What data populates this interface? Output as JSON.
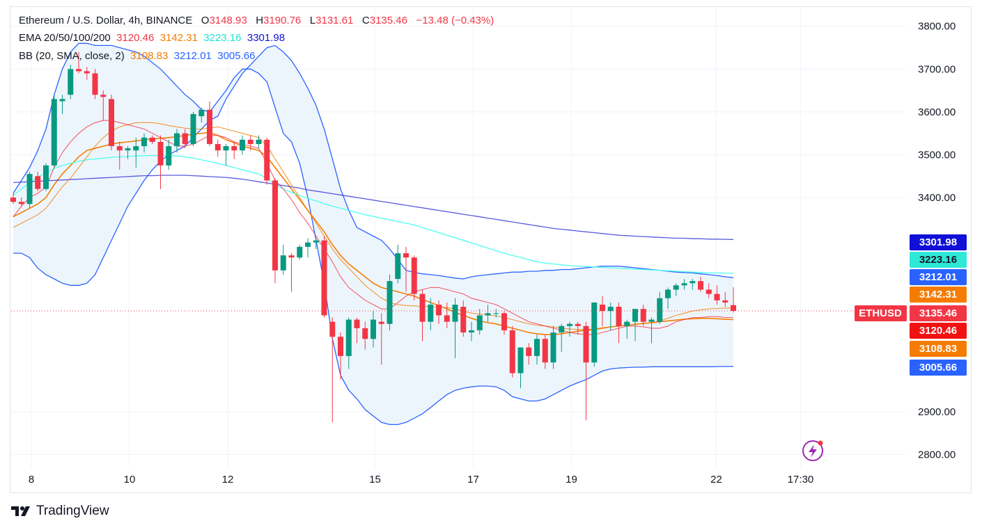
{
  "header": {
    "symbol": "Ethereum / U.S. Dollar, 4h, BINANCE",
    "open_key": "O",
    "open": "3148.93",
    "high_key": "H",
    "high": "3190.76",
    "low_key": "L",
    "low": "3131.61",
    "close_key": "C",
    "close": "3135.46",
    "change": "−13.48 (−0.43%)",
    "ema_label": "EMA 20/50/100/200",
    "ema_values": [
      "3120.46",
      "3142.31",
      "3223.16",
      "3301.98"
    ],
    "bb_label": "BB (20, SMA, close, 2)",
    "bb_values": [
      "3108.83",
      "3212.01",
      "3005.66"
    ]
  },
  "brand": {
    "name": "TradingView"
  },
  "colors": {
    "up": "#089981",
    "down": "#f23645",
    "ema20": "#f23645",
    "ema50": "#f57c00",
    "ema100": "#4dfff0",
    "ema200": "#2f2fd6",
    "bb_basis": "#f57c00",
    "bb_band": "#2962ff",
    "bb_fill": "#e9f2fb",
    "ethusd_tag": "#f23645"
  },
  "chart_data": {
    "type": "candlestick",
    "title": "Ethereum / U.S. Dollar, 4h, BINANCE",
    "ylim": [
      2770,
      3845
    ],
    "y_ticks": [
      "3800.00",
      "3700.00",
      "3600.00",
      "3500.00",
      "3400.00",
      "2900.00",
      "2800.00"
    ],
    "x_ticks": [
      "8",
      "10",
      "12",
      "15",
      "17",
      "19",
      "22",
      "17:30"
    ],
    "x_tick_positions": [
      0.0,
      12.0,
      24.0,
      42.0,
      54.0,
      66.0,
      83.7,
      94.0
    ],
    "grid": true,
    "candles": [
      [
        3400,
        3410,
        3385,
        3390
      ],
      [
        3390,
        3400,
        3380,
        3385
      ],
      [
        3385,
        3460,
        3375,
        3455
      ],
      [
        3450,
        3460,
        3415,
        3420
      ],
      [
        3420,
        3480,
        3415,
        3475
      ],
      [
        3475,
        3640,
        3470,
        3630
      ],
      [
        3625,
        3640,
        3595,
        3630
      ],
      [
        3640,
        3710,
        3630,
        3700
      ],
      [
        3700,
        3740,
        3690,
        3695
      ],
      [
        3695,
        3705,
        3675,
        3690
      ],
      [
        3690,
        3700,
        3630,
        3640
      ],
      [
        3640,
        3650,
        3580,
        3635
      ],
      [
        3630,
        3640,
        3510,
        3520
      ],
      [
        3520,
        3530,
        3465,
        3510
      ],
      [
        3510,
        3520,
        3490,
        3515
      ],
      [
        3510,
        3540,
        3470,
        3520
      ],
      [
        3520,
        3550,
        3505,
        3540
      ],
      [
        3540,
        3545,
        3525,
        3530
      ],
      [
        3530,
        3545,
        3420,
        3475
      ],
      [
        3475,
        3535,
        3465,
        3520
      ],
      [
        3520,
        3560,
        3505,
        3550
      ],
      [
        3550,
        3560,
        3515,
        3525
      ],
      [
        3525,
        3600,
        3520,
        3595
      ],
      [
        3590,
        3610,
        3575,
        3605
      ],
      [
        3605,
        3625,
        3520,
        3525
      ],
      [
        3525,
        3535,
        3495,
        3510
      ],
      [
        3510,
        3525,
        3475,
        3520
      ],
      [
        3520,
        3530,
        3490,
        3510
      ],
      [
        3510,
        3545,
        3500,
        3535
      ],
      [
        3535,
        3545,
        3510,
        3525
      ],
      [
        3525,
        3545,
        3515,
        3535
      ],
      [
        3535,
        3540,
        3430,
        3440
      ],
      [
        3440,
        3445,
        3200,
        3230
      ],
      [
        3230,
        3290,
        3220,
        3265
      ],
      [
        3265,
        3270,
        3180,
        3260
      ],
      [
        3260,
        3290,
        3255,
        3285
      ],
      [
        3285,
        3305,
        3260,
        3295
      ],
      [
        3295,
        3305,
        3280,
        3300
      ],
      [
        3300,
        3310,
        3120,
        3125
      ],
      [
        3110,
        3120,
        2875,
        3075
      ],
      [
        3075,
        3085,
        2975,
        3030
      ],
      [
        3030,
        3120,
        3000,
        3115
      ],
      [
        3115,
        3120,
        3060,
        3095
      ],
      [
        3095,
        3110,
        3045,
        3070
      ],
      [
        3070,
        3135,
        3050,
        3115
      ],
      [
        3110,
        3130,
        3010,
        3105
      ],
      [
        3105,
        3220,
        3090,
        3205
      ],
      [
        3210,
        3290,
        3200,
        3270
      ],
      [
        3270,
        3285,
        3180,
        3260
      ],
      [
        3260,
        3265,
        3160,
        3175
      ],
      [
        3175,
        3185,
        3065,
        3110
      ],
      [
        3110,
        3165,
        3090,
        3150
      ],
      [
        3150,
        3160,
        3105,
        3125
      ],
      [
        3125,
        3155,
        3095,
        3110
      ],
      [
        3110,
        3165,
        3025,
        3150
      ],
      [
        3145,
        3160,
        3075,
        3085
      ],
      [
        3085,
        3110,
        3065,
        3090
      ],
      [
        3090,
        3140,
        3080,
        3125
      ],
      [
        3125,
        3150,
        3110,
        3130
      ],
      [
        3130,
        3140,
        3120,
        3130
      ],
      [
        3130,
        3135,
        3080,
        3090
      ],
      [
        3090,
        3100,
        2980,
        2990
      ],
      [
        2990,
        3050,
        2955,
        3050
      ],
      [
        3050,
        3060,
        3010,
        3030
      ],
      [
        3030,
        3080,
        3010,
        3070
      ],
      [
        3070,
        3080,
        3000,
        3015
      ],
      [
        3015,
        3100,
        3000,
        3085
      ],
      [
        3085,
        3105,
        3040,
        3100
      ],
      [
        3100,
        3110,
        3075,
        3105
      ],
      [
        3105,
        3110,
        3080,
        3100
      ],
      [
        3100,
        3110,
        2880,
        3015
      ],
      [
        3015,
        3155,
        3005,
        3155
      ],
      [
        3150,
        3170,
        3100,
        3135
      ],
      [
        3135,
        3155,
        3090,
        3145
      ],
      [
        3145,
        3155,
        3060,
        3100
      ],
      [
        3100,
        3115,
        3070,
        3110
      ],
      [
        3110,
        3130,
        3065,
        3140
      ],
      [
        3140,
        3150,
        3100,
        3110
      ],
      [
        3110,
        3120,
        3060,
        3115
      ],
      [
        3110,
        3180,
        3105,
        3165
      ],
      [
        3165,
        3190,
        3140,
        3185
      ],
      [
        3185,
        3200,
        3170,
        3195
      ],
      [
        3195,
        3210,
        3185,
        3200
      ],
      [
        3200,
        3210,
        3185,
        3205
      ],
      [
        3205,
        3215,
        3180,
        3185
      ],
      [
        3185,
        3200,
        3165,
        3175
      ],
      [
        3175,
        3195,
        3150,
        3160
      ],
      [
        3160,
        3180,
        3145,
        3155
      ],
      [
        3148.93,
        3190.76,
        3131.61,
        3135.46
      ]
    ],
    "series": [
      {
        "name": "EMA 20",
        "values": [
          3355,
          3380,
          3400,
          3410,
          3425,
          3470,
          3505,
          3530,
          3550,
          3565,
          3575,
          3580,
          3580,
          3575,
          3570,
          3565,
          3560,
          3550,
          3540,
          3530,
          3520,
          3520,
          3525,
          3535,
          3545,
          3545,
          3540,
          3530,
          3525,
          3520,
          3515,
          3480,
          3440,
          3420,
          3395,
          3365,
          3340,
          3310,
          3280,
          3250,
          3215,
          3190,
          3175,
          3160,
          3150,
          3140,
          3140,
          3155,
          3170,
          3180,
          3185,
          3190,
          3190,
          3185,
          3180,
          3175,
          3165,
          3160,
          3155,
          3150,
          3140,
          3130,
          3120,
          3110,
          3105,
          3100,
          3095,
          3090,
          3085,
          3082,
          3080,
          3080,
          3085,
          3090,
          3095,
          3100,
          3100,
          3098,
          3095,
          3095,
          3100,
          3110,
          3115,
          3120,
          3120,
          3122,
          3122,
          3120,
          3120,
          3120.46
        ]
      },
      {
        "name": "EMA 50",
        "values": [
          3330,
          3340,
          3350,
          3360,
          3375,
          3400,
          3425,
          3445,
          3470,
          3495,
          3520,
          3540,
          3555,
          3565,
          3570,
          3575,
          3575,
          3575,
          3572,
          3568,
          3565,
          3562,
          3560,
          3560,
          3562,
          3565,
          3560,
          3555,
          3550,
          3545,
          3540,
          3520,
          3490,
          3460,
          3430,
          3400,
          3370,
          3340,
          3310,
          3280,
          3255,
          3235,
          3215,
          3195,
          3180,
          3165,
          3155,
          3150,
          3148,
          3147,
          3146,
          3145,
          3144,
          3143,
          3140,
          3135,
          3130,
          3128,
          3126,
          3124,
          3120,
          3115,
          3110,
          3105,
          3102,
          3100,
          3098,
          3095,
          3093,
          3092,
          3092,
          3093,
          3096,
          3098,
          3100,
          3102,
          3104,
          3106,
          3108,
          3112,
          3118,
          3125,
          3130,
          3135,
          3138,
          3140,
          3141,
          3142,
          3142,
          3142.31
        ]
      },
      {
        "name": "EMA 100",
        "values": [
          3405,
          3420,
          3435,
          3448,
          3458,
          3468,
          3475,
          3480,
          3485,
          3488,
          3490,
          3492,
          3494,
          3495,
          3496,
          3497,
          3498,
          3498,
          3498,
          3498,
          3497,
          3495,
          3492,
          3488,
          3484,
          3480,
          3475,
          3470,
          3465,
          3460,
          3455,
          3445,
          3430,
          3420,
          3412,
          3405,
          3398,
          3392,
          3386,
          3380,
          3375,
          3370,
          3365,
          3360,
          3356,
          3352,
          3348,
          3344,
          3340,
          3336,
          3330,
          3324,
          3318,
          3312,
          3306,
          3300,
          3294,
          3288,
          3282,
          3276,
          3270,
          3265,
          3260,
          3255,
          3250,
          3247,
          3245,
          3243,
          3241,
          3240,
          3239,
          3238,
          3237,
          3236,
          3235,
          3234,
          3233,
          3232,
          3231,
          3230,
          3229,
          3228,
          3227,
          3226,
          3225,
          3224,
          3224,
          3223.5,
          3223.3,
          3223.16
        ]
      },
      {
        "name": "EMA 200",
        "values": [
          3435,
          3436,
          3437,
          3438,
          3439,
          3440,
          3441,
          3442,
          3443,
          3444,
          3445,
          3446,
          3447,
          3448,
          3449,
          3450,
          3451,
          3451,
          3452,
          3452,
          3452,
          3452,
          3451,
          3450,
          3449,
          3448,
          3447,
          3445,
          3443,
          3440,
          3437,
          3434,
          3431,
          3428,
          3425,
          3422,
          3418,
          3415,
          3412,
          3409,
          3406,
          3403,
          3400,
          3397,
          3394,
          3391,
          3388,
          3385,
          3382,
          3379,
          3376,
          3373,
          3370,
          3367,
          3364,
          3361,
          3358,
          3355,
          3352,
          3349,
          3346,
          3343,
          3340,
          3337,
          3334,
          3331,
          3328,
          3326,
          3324,
          3322,
          3320,
          3318,
          3316,
          3314,
          3312,
          3311,
          3310,
          3309,
          3308,
          3307,
          3306,
          3305,
          3305,
          3304,
          3304,
          3303,
          3303,
          3302.5,
          3302.2,
          3301.98
        ]
      },
      {
        "name": "BB basis",
        "values": [
          3355,
          3365,
          3375,
          3385,
          3400,
          3430,
          3455,
          3475,
          3495,
          3510,
          3515,
          3520,
          3525,
          3528,
          3530,
          3532,
          3535,
          3537,
          3538,
          3540,
          3542,
          3545,
          3548,
          3550,
          3552,
          3545,
          3535,
          3528,
          3520,
          3515,
          3510,
          3495,
          3470,
          3445,
          3420,
          3395,
          3370,
          3345,
          3320,
          3290,
          3265,
          3245,
          3230,
          3215,
          3200,
          3190,
          3185,
          3180,
          3175,
          3170,
          3162,
          3155,
          3148,
          3140,
          3132,
          3125,
          3118,
          3112,
          3108,
          3105,
          3100,
          3095,
          3090,
          3085,
          3082,
          3080,
          3080,
          3082,
          3085,
          3088,
          3090,
          3092,
          3095,
          3098,
          3100,
          3102,
          3104,
          3106,
          3108,
          3110,
          3112,
          3114,
          3116,
          3117,
          3118,
          3118,
          3117,
          3116,
          3115,
          3108.83
        ]
      },
      {
        "name": "BB upper",
        "values": [
          3270,
          3270,
          3260,
          3235,
          3220,
          3210,
          3200,
          3195,
          3195,
          3200,
          3220,
          3260,
          3300,
          3340,
          3380,
          3410,
          3440,
          3465,
          3485,
          3500,
          3510,
          3520,
          3540,
          3560,
          3580,
          3590,
          3630,
          3660,
          3690,
          3710,
          3730,
          3750,
          3755,
          3740,
          3720,
          3690,
          3655,
          3615,
          3560,
          3490,
          3420,
          3370,
          3330,
          3320,
          3310,
          3300,
          3280,
          3255,
          3230,
          3225,
          3222,
          3220,
          3218,
          3215,
          3212,
          3210,
          3215,
          3218,
          3220,
          3222,
          3224,
          3226,
          3226,
          3228,
          3228,
          3230,
          3230,
          3232,
          3232,
          3234,
          3236,
          3238,
          3240,
          3240,
          3240,
          3238,
          3236,
          3234,
          3232,
          3230,
          3228,
          3226,
          3225,
          3224,
          3222,
          3220,
          3218,
          3215,
          3213,
          3212.01
        ]
      },
      {
        "name": "BB lower",
        "values": [
          3410,
          3440,
          3470,
          3510,
          3560,
          3640,
          3700,
          3740,
          3760,
          3760,
          3755,
          3755,
          3755,
          3750,
          3745,
          3740,
          3730,
          3715,
          3700,
          3680,
          3660,
          3640,
          3625,
          3605,
          3600,
          3625,
          3650,
          3680,
          3700,
          3700,
          3690,
          3670,
          3610,
          3550,
          3530,
          3480,
          3400,
          3300,
          3200,
          3070,
          2985,
          2950,
          2930,
          2905,
          2890,
          2875,
          2870,
          2870,
          2875,
          2885,
          2895,
          2910,
          2925,
          2940,
          2950,
          2955,
          2958,
          2960,
          2960,
          2958,
          2950,
          2935,
          2930,
          2925,
          2925,
          2930,
          2940,
          2950,
          2960,
          2968,
          2975,
          2985,
          2995,
          3000,
          3002,
          3003,
          3004,
          3004,
          3005,
          3005,
          3005,
          3005,
          3005,
          3005,
          3005,
          3005,
          3005.5,
          3005.6,
          3005.6,
          3005.66
        ]
      },
      {
        "name": "BB fill note",
        "values": []
      }
    ],
    "price_tags": [
      {
        "label": "3301.98",
        "value": 3301.98,
        "color": "#1010d8"
      },
      {
        "label": "3223.16",
        "value": 3223.16,
        "color": "#2ee8d8",
        "dark_text": true
      },
      {
        "label": "3212.01",
        "value": 3212.01,
        "color": "#2962ff"
      },
      {
        "label": "3142.31",
        "value": 3142.31,
        "color": "#f57c00"
      },
      {
        "label": "3135.46",
        "value": 3135.46,
        "color": "#f23645",
        "symbol": "ETHUSD"
      },
      {
        "label": "3120.46",
        "value": 3120.46,
        "color": "#f21212"
      },
      {
        "label": "3108.83",
        "value": 3108.83,
        "color": "#f57c00"
      },
      {
        "label": "3005.66",
        "value": 3005.66,
        "color": "#2962ff"
      }
    ]
  }
}
